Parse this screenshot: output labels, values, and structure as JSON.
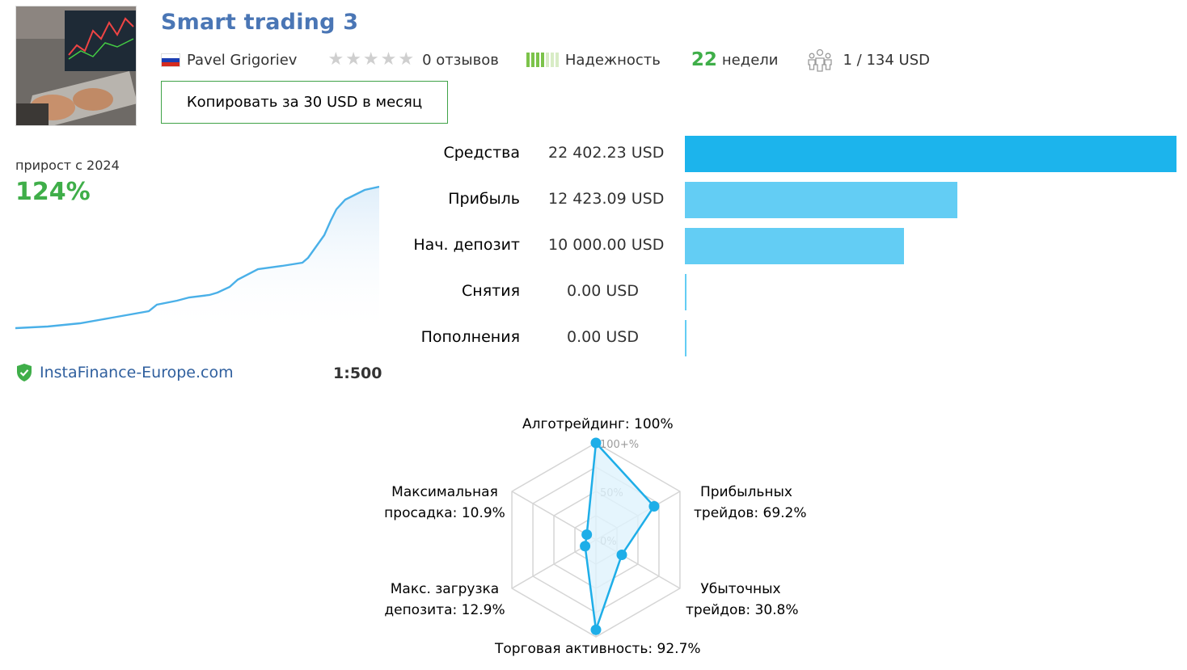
{
  "header": {
    "title": "Smart trading 3",
    "author": "Pavel Grigoriev",
    "reviews": "0 отзывов",
    "rating_stars_filled": 0,
    "rating_stars_total": 5,
    "reliability_label": "Надежность",
    "reliability_level": 4,
    "reliability_total": 7,
    "weeks_number": "22",
    "weeks_label": "недели",
    "subscribers": "1 / 134 USD",
    "copy_button": "Копировать за 30 USD в месяц"
  },
  "growth": {
    "label": "прирост с 2024",
    "value": "124%",
    "broker": "InstaFinance-Europe.com",
    "leverage": "1:500"
  },
  "stats": [
    {
      "label": "Средства",
      "value": "22 402.23 USD",
      "amount": 22402.23
    },
    {
      "label": "Прибыль",
      "value": "12 423.09 USD",
      "amount": 12423.09
    },
    {
      "label": "Нач. депозит",
      "value": "10 000.00 USD",
      "amount": 10000.0
    },
    {
      "label": "Снятия",
      "value": "0.00 USD",
      "amount": 0
    },
    {
      "label": "Пополнения",
      "value": "0.00 USD",
      "amount": 0
    }
  ],
  "radar": {
    "axes": [
      {
        "label": "Алготрейдинг: 100%",
        "value": 100
      },
      {
        "label": "Прибыльных трейдов: 69.2%",
        "line1": "Прибыльных",
        "line2": "трейдов: 69.2%",
        "value": 69.2
      },
      {
        "label": "Убыточных трейдов: 30.8%",
        "line1": "Убыточных",
        "line2": "трейдов: 30.8%",
        "value": 30.8
      },
      {
        "label": "Торговая активность: 92.7%",
        "value": 92.7
      },
      {
        "label": "Макс. загрузка депозита: 12.9%",
        "line1": "Макс. загрузка",
        "line2": "депозита: 12.9%",
        "value": 12.9
      },
      {
        "label": "Максимальная просадка: 10.9%",
        "line1": "Максимальная",
        "line2": "просадка: 10.9%",
        "value": 10.9
      }
    ],
    "scale_labels": [
      "100+%",
      "50%",
      "0%"
    ]
  },
  "colors": {
    "title": "#4a76b5",
    "accent_green": "#3fae49",
    "bar_main": "#1cb4ec",
    "bar_secondary": "#63cdf4",
    "chart_line": "#4ab0e8"
  }
}
